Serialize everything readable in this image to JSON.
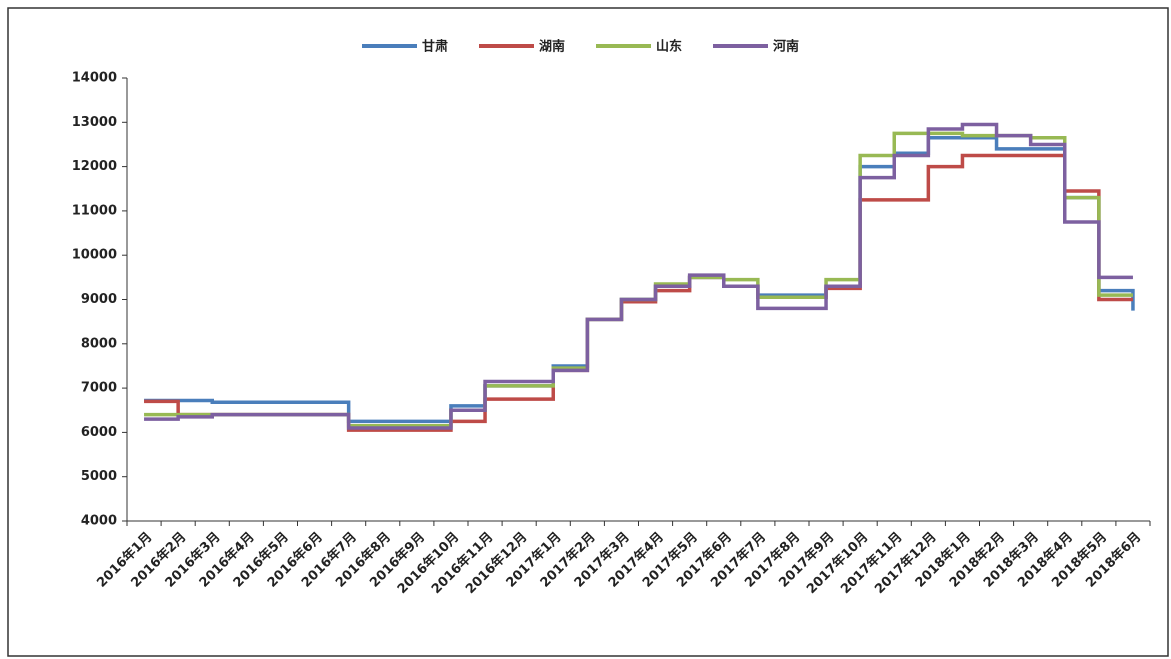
{
  "chart_data": {
    "type": "step-line",
    "categories": [
      "2016年1月",
      "2016年2月",
      "2016年3月",
      "2016年4月",
      "2016年5月",
      "2016年6月",
      "2016年7月",
      "2016年8月",
      "2016年9月",
      "2016年10月",
      "2016年11月",
      "2016年12月",
      "2017年1月",
      "2017年2月",
      "2017年3月",
      "2017年4月",
      "2017年5月",
      "2017年6月",
      "2017年7月",
      "2017年8月",
      "2017年9月",
      "2017年10月",
      "2017年11月",
      "2017年12月",
      "2018年1月",
      "2018年2月",
      "2018年3月",
      "2018年4月",
      "2018年5月",
      "2018年6月"
    ],
    "series": [
      {
        "name": "甘肃",
        "color": "#4a7ebb",
        "values": [
          6720,
          6720,
          6680,
          6680,
          6680,
          6680,
          6250,
          6250,
          6250,
          6600,
          7050,
          7050,
          7500,
          8550,
          9000,
          9300,
          9500,
          9300,
          9100,
          9100,
          9300,
          12000,
          12300,
          12650,
          12650,
          12400,
          12400,
          11300,
          9200,
          8750
        ]
      },
      {
        "name": "湖南",
        "color": "#be4b48",
        "values": [
          6700,
          6400,
          6400,
          6400,
          6400,
          6400,
          6050,
          6050,
          6050,
          6250,
          6750,
          6750,
          7400,
          8550,
          8950,
          9200,
          9500,
          9300,
          9050,
          9050,
          9250,
          11250,
          11250,
          12000,
          12250,
          12250,
          12250,
          11450,
          9000,
          9000
        ]
      },
      {
        "name": "山东",
        "color": "#98b954",
        "values": [
          6400,
          6400,
          6400,
          6400,
          6400,
          6400,
          6150,
          6150,
          6150,
          6500,
          7050,
          7050,
          7450,
          8550,
          9000,
          9350,
          9500,
          9450,
          9050,
          9050,
          9450,
          12250,
          12750,
          12750,
          12700,
          12700,
          12650,
          11300,
          9100,
          9100
        ]
      },
      {
        "name": "河南",
        "color": "#7d60a0",
        "values": [
          6300,
          6350,
          6400,
          6400,
          6400,
          6400,
          6100,
          6100,
          6100,
          6500,
          7150,
          7150,
          7400,
          8550,
          9000,
          9300,
          9550,
          9300,
          8800,
          8800,
          9300,
          11750,
          12250,
          12850,
          12950,
          12700,
          12500,
          10750,
          9500,
          9500
        ]
      }
    ],
    "ylim": [
      4000,
      14000
    ],
    "yticks": [
      4000,
      5000,
      6000,
      7000,
      8000,
      9000,
      10000,
      11000,
      12000,
      13000,
      14000
    ]
  }
}
